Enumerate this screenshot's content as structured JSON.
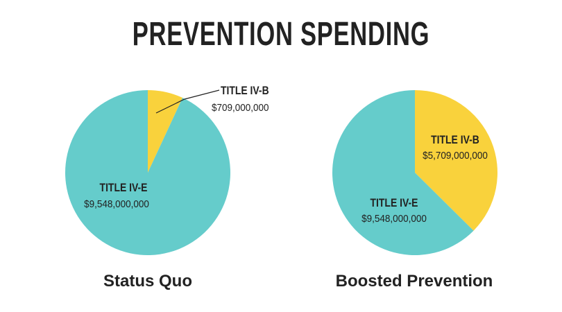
{
  "title": "PREVENTION SPENDING",
  "colors": {
    "title_iv_e": "#65CCCB",
    "title_iv_b": "#F9D23C",
    "text": "#222222"
  },
  "chart_data": [
    {
      "type": "pie",
      "caption": "Status Quo",
      "slices": [
        {
          "label": "TITLE IV-B",
          "value_text": "$709,000,000",
          "value": 709000000,
          "color": "#F9D23C"
        },
        {
          "label": "TITLE IV-E",
          "value_text": "$9,548,000,000",
          "value": 9548000000,
          "color": "#65CCCB"
        }
      ]
    },
    {
      "type": "pie",
      "caption": "Boosted Prevention",
      "slices": [
        {
          "label": "TITLE IV-B",
          "value_text": "$5,709,000,000",
          "value": 5709000000,
          "color": "#F9D23C"
        },
        {
          "label": "TITLE IV-E",
          "value_text": "$9,548,000,000",
          "value": 9548000000,
          "color": "#65CCCB"
        }
      ]
    }
  ]
}
